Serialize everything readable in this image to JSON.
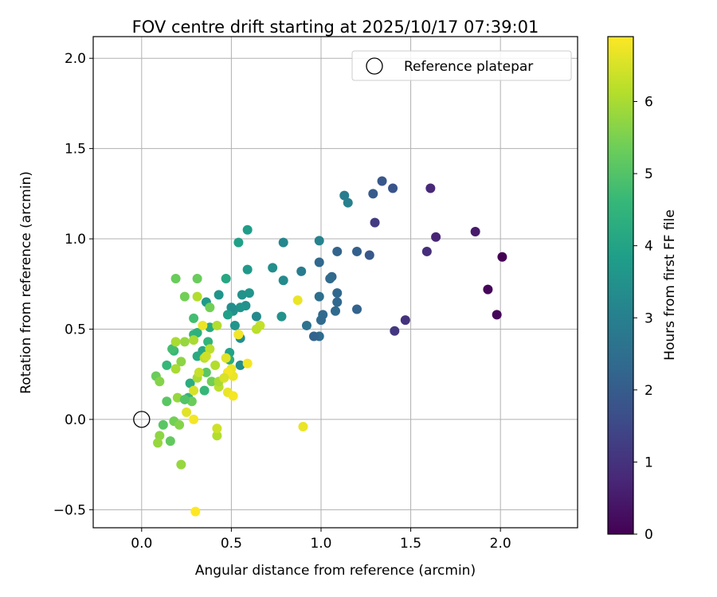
{
  "chart_data": {
    "type": "scatter",
    "title": "FOV centre drift starting at 2025/10/17 07:39:01",
    "xlabel": "Angular distance from reference (arcmin)",
    "ylabel": "Rotation from reference (arcmin)",
    "xlim": [
      -0.27,
      2.43
    ],
    "ylim": [
      -0.6,
      2.12
    ],
    "xticks": [
      0.0,
      0.5,
      1.0,
      1.5,
      2.0
    ],
    "xtick_labels": [
      "0.0",
      "0.5",
      "1.0",
      "1.5",
      "2.0"
    ],
    "yticks": [
      -0.5,
      0.0,
      0.5,
      1.0,
      1.5,
      2.0
    ],
    "ytick_labels": [
      "−0.5",
      "0.0",
      "0.5",
      "1.0",
      "1.5",
      "2.0"
    ],
    "grid": true,
    "legend": {
      "position": "top-right",
      "entries": [
        "Reference platepar"
      ]
    },
    "reference_point": {
      "x": 0.0,
      "y": 0.0,
      "label": "Reference platepar"
    },
    "colorbar": {
      "label": "Hours from first FF file",
      "range": [
        0,
        6.9
      ],
      "ticks": [
        0,
        1,
        2,
        3,
        4,
        5,
        6
      ],
      "tick_labels": [
        "0",
        "1",
        "2",
        "3",
        "4",
        "5",
        "6"
      ],
      "colormap": "viridis"
    },
    "points": [
      [
        2.01,
        0.9,
        0.0
      ],
      [
        1.93,
        0.72,
        0.1
      ],
      [
        1.98,
        0.58,
        0.1
      ],
      [
        1.86,
        1.04,
        0.5
      ],
      [
        1.64,
        1.01,
        0.7
      ],
      [
        1.61,
        1.28,
        0.8
      ],
      [
        1.59,
        0.93,
        0.9
      ],
      [
        1.47,
        0.55,
        1.0
      ],
      [
        1.41,
        0.49,
        1.1
      ],
      [
        1.3,
        1.09,
        1.2
      ],
      [
        1.4,
        1.28,
        1.8
      ],
      [
        1.34,
        1.32,
        1.9
      ],
      [
        1.27,
        0.91,
        1.9
      ],
      [
        1.29,
        1.25,
        2.0
      ],
      [
        1.2,
        0.93,
        2.1
      ],
      [
        1.2,
        0.61,
        2.2
      ],
      [
        1.09,
        0.93,
        2.2
      ],
      [
        1.09,
        0.7,
        2.3
      ],
      [
        1.09,
        0.65,
        2.3
      ],
      [
        1.08,
        0.6,
        2.4
      ],
      [
        1.06,
        0.79,
        2.3
      ],
      [
        1.05,
        0.78,
        2.4
      ],
      [
        1.01,
        0.58,
        2.4
      ],
      [
        1.0,
        0.55,
        2.4
      ],
      [
        0.99,
        0.87,
        2.3
      ],
      [
        0.99,
        0.68,
        2.5
      ],
      [
        0.99,
        0.46,
        2.4
      ],
      [
        0.96,
        0.46,
        2.2
      ],
      [
        0.92,
        0.52,
        2.6
      ],
      [
        1.13,
        1.24,
        2.9
      ],
      [
        1.15,
        1.2,
        3.0
      ],
      [
        0.99,
        0.99,
        3.1
      ],
      [
        0.89,
        0.82,
        2.9
      ],
      [
        0.79,
        0.98,
        3.2
      ],
      [
        0.79,
        0.77,
        3.3
      ],
      [
        0.73,
        0.84,
        3.4
      ],
      [
        0.78,
        0.57,
        3.5
      ],
      [
        0.64,
        0.57,
        3.3
      ],
      [
        0.59,
        1.05,
        3.8
      ],
      [
        0.54,
        0.98,
        3.9
      ],
      [
        0.59,
        0.83,
        3.7
      ],
      [
        0.6,
        0.7,
        3.6
      ],
      [
        0.58,
        0.63,
        3.5
      ],
      [
        0.56,
        0.69,
        3.5
      ],
      [
        0.55,
        0.62,
        3.6
      ],
      [
        0.51,
        0.6,
        3.5
      ],
      [
        0.5,
        0.62,
        3.4
      ],
      [
        0.52,
        0.52,
        3.6
      ],
      [
        0.48,
        0.58,
        3.9
      ],
      [
        0.55,
        0.45,
        3.4
      ],
      [
        0.54,
        0.47,
        3.3
      ],
      [
        0.55,
        0.3,
        3.4
      ],
      [
        0.43,
        0.69,
        3.6
      ],
      [
        0.36,
        0.65,
        3.7
      ],
      [
        0.47,
        0.78,
        4.1
      ],
      [
        0.49,
        0.37,
        4.0
      ],
      [
        0.49,
        0.33,
        4.3
      ],
      [
        0.38,
        0.51,
        4.2
      ],
      [
        0.34,
        0.38,
        4.1
      ],
      [
        0.31,
        0.35,
        4.2
      ],
      [
        0.37,
        0.43,
        4.5
      ],
      [
        0.29,
        0.47,
        4.5
      ],
      [
        0.29,
        0.56,
        4.8
      ],
      [
        0.31,
        0.48,
        4.4
      ],
      [
        0.26,
        0.12,
        4.5
      ],
      [
        0.27,
        0.2,
        4.3
      ],
      [
        0.35,
        0.16,
        4.6
      ],
      [
        0.18,
        0.38,
        4.6
      ],
      [
        0.17,
        0.39,
        4.8
      ],
      [
        0.14,
        0.3,
        4.6
      ],
      [
        0.19,
        0.78,
        5.3
      ],
      [
        0.31,
        0.78,
        5.3
      ],
      [
        0.24,
        0.68,
        5.4
      ],
      [
        0.38,
        0.62,
        5.4
      ],
      [
        0.36,
        0.26,
        5.1
      ],
      [
        0.39,
        0.21,
        5.4
      ],
      [
        0.14,
        0.1,
        5.1
      ],
      [
        0.28,
        0.1,
        5.3
      ],
      [
        0.08,
        0.24,
        5.3
      ],
      [
        0.12,
        -0.03,
        5.1
      ],
      [
        0.16,
        -0.12,
        5.2
      ],
      [
        0.18,
        -0.01,
        5.4
      ],
      [
        0.1,
        0.21,
        5.6
      ],
      [
        0.22,
        0.32,
        5.7
      ],
      [
        0.2,
        0.12,
        5.8
      ],
      [
        0.21,
        -0.03,
        5.6
      ],
      [
        0.1,
        -0.09,
        5.7
      ],
      [
        0.09,
        -0.13,
        5.8
      ],
      [
        0.22,
        -0.25,
        5.8
      ],
      [
        0.24,
        0.43,
        5.8
      ],
      [
        0.19,
        0.43,
        6.0
      ],
      [
        0.29,
        0.44,
        6.0
      ],
      [
        0.19,
        0.28,
        6.0
      ],
      [
        0.31,
        0.23,
        6.0
      ],
      [
        0.31,
        0.68,
        6.1
      ],
      [
        0.42,
        0.52,
        6.1
      ],
      [
        0.41,
        0.3,
        6.1
      ],
      [
        0.38,
        0.39,
        6.2
      ],
      [
        0.42,
        -0.09,
        6.1
      ],
      [
        0.42,
        -0.05,
        6.4
      ],
      [
        0.32,
        0.26,
        6.3
      ],
      [
        0.43,
        0.18,
        6.2
      ],
      [
        0.43,
        0.21,
        6.0
      ],
      [
        0.35,
        0.34,
        6.2
      ],
      [
        0.36,
        0.35,
        6.4
      ],
      [
        0.47,
        0.34,
        6.6
      ],
      [
        0.5,
        0.28,
        6.7
      ],
      [
        0.51,
        0.24,
        6.7
      ],
      [
        0.48,
        0.26,
        6.8
      ],
      [
        0.48,
        0.15,
        6.7
      ],
      [
        0.51,
        0.13,
        6.8
      ],
      [
        0.46,
        0.23,
        6.5
      ],
      [
        0.54,
        0.47,
        6.8
      ],
      [
        0.59,
        0.31,
        6.8
      ],
      [
        0.34,
        0.52,
        6.7
      ],
      [
        0.29,
        0.16,
        6.5
      ],
      [
        0.25,
        0.04,
        6.6
      ],
      [
        0.29,
        0.0,
        6.8
      ],
      [
        0.3,
        -0.51,
        6.9
      ],
      [
        0.87,
        0.66,
        6.7
      ],
      [
        0.9,
        -0.04,
        6.7
      ],
      [
        0.66,
        0.52,
        6.3
      ],
      [
        0.64,
        0.5,
        6.2
      ],
      [
        0.24,
        0.11,
        5.0
      ]
    ]
  }
}
